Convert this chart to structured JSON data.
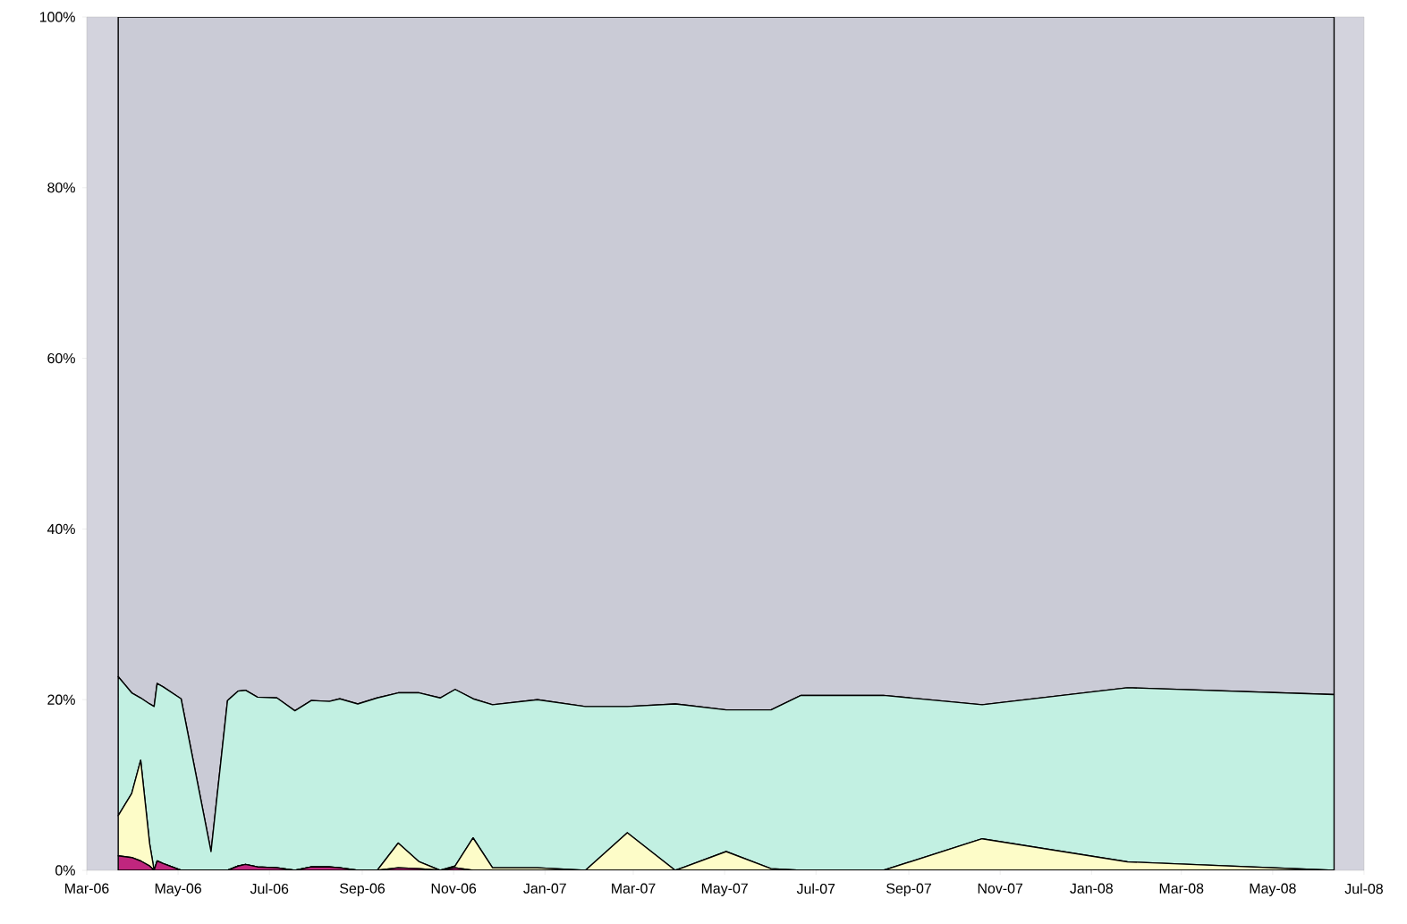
{
  "chart_data": {
    "type": "area",
    "stacked": true,
    "x": [
      "2006-03-22",
      "2006-03-31",
      "2006-04-06",
      "2006-04-12",
      "2006-04-15",
      "2006-04-17",
      "2006-04-21",
      "2006-05-03",
      "2006-05-23",
      "2006-06-03",
      "2006-06-10",
      "2006-06-15",
      "2006-06-23",
      "2006-07-06",
      "2006-07-18",
      "2006-07-29",
      "2006-08-10",
      "2006-08-17",
      "2006-08-29",
      "2006-09-11",
      "2006-09-25",
      "2006-10-09",
      "2006-10-23",
      "2006-11-02",
      "2006-11-14",
      "2006-11-27",
      "2006-12-27",
      "2007-01-28",
      "2007-02-25",
      "2007-03-29",
      "2007-05-02",
      "2007-06-01",
      "2007-06-21",
      "2007-08-15",
      "2007-10-20",
      "2008-01-25",
      "2008-06-11"
    ],
    "series": [
      {
        "color": "#c0267e",
        "values": [
          1.7,
          1.5,
          1.1,
          0.5,
          0,
          1.1,
          0.8,
          0,
          0,
          0,
          0.5,
          0.7,
          0.4,
          0.3,
          0,
          0.4,
          0.4,
          0.3,
          0,
          0,
          0.3,
          0.2,
          0,
          0.3,
          0,
          0,
          0,
          0,
          0,
          0,
          0,
          0,
          0,
          0,
          0,
          0,
          0
        ]
      },
      {
        "color": "#fdfcc8",
        "values": [
          4.7,
          7.5,
          11.8,
          2.6,
          0,
          0,
          0,
          0,
          0,
          0,
          0,
          0,
          0,
          0,
          0,
          0,
          0,
          0,
          0,
          0,
          2.9,
          0.8,
          0,
          0.2,
          3.8,
          0.3,
          0.3,
          0,
          4.4,
          0,
          2.2,
          0.2,
          0,
          0,
          3.7,
          1.0,
          0
        ]
      },
      {
        "color": "#c2f0e2",
        "values": [
          16.3,
          11.8,
          7.3,
          16.4,
          19.2,
          20.8,
          20.7,
          20.1,
          2.2,
          19.9,
          20.5,
          20.4,
          19.9,
          19.9,
          18.7,
          19.5,
          19.4,
          19.8,
          19.5,
          20.2,
          17.6,
          19.8,
          20.2,
          20.7,
          16.3,
          19.1,
          19.7,
          19.2,
          14.8,
          19.5,
          16.6,
          18.6,
          20.5,
          20.5,
          15.7,
          20.4,
          20.6
        ]
      },
      {
        "color": "#cacbd6",
        "values": [
          77.3,
          79.2,
          79.8,
          80.5,
          80.8,
          78.1,
          78.5,
          79.9,
          97.8,
          80.1,
          79.0,
          78.9,
          79.7,
          79.8,
          81.3,
          80.1,
          80.2,
          79.9,
          80.5,
          79.8,
          79.2,
          79.2,
          79.8,
          78.8,
          79.9,
          80.6,
          80.0,
          80.8,
          80.8,
          80.5,
          81.2,
          81.2,
          79.5,
          79.5,
          80.6,
          78.6,
          79.4
        ]
      }
    ],
    "xlim": [
      "2006-03-01",
      "2008-07-01"
    ],
    "xticks": [
      {
        "value": "2006-03-01",
        "label": "Mar-06"
      },
      {
        "value": "2006-05-01",
        "label": "May-06"
      },
      {
        "value": "2006-07-01",
        "label": "Jul-06"
      },
      {
        "value": "2006-09-01",
        "label": "Sep-06"
      },
      {
        "value": "2006-11-01",
        "label": "Nov-06"
      },
      {
        "value": "2007-01-01",
        "label": "Jan-07"
      },
      {
        "value": "2007-03-01",
        "label": "Mar-07"
      },
      {
        "value": "2007-05-01",
        "label": "May-07"
      },
      {
        "value": "2007-07-01",
        "label": "Jul-07"
      },
      {
        "value": "2007-09-01",
        "label": "Sep-07"
      },
      {
        "value": "2007-11-01",
        "label": "Nov-07"
      },
      {
        "value": "2008-01-01",
        "label": "Jan-08"
      },
      {
        "value": "2008-03-01",
        "label": "Mar-08"
      },
      {
        "value": "2008-05-01",
        "label": "May-08"
      },
      {
        "value": "2008-07-01",
        "label": "Jul-08"
      }
    ],
    "ylim": [
      0,
      100
    ],
    "yticks": [
      {
        "value": 0,
        "label": "0%"
      },
      {
        "value": 20,
        "label": "20%"
      },
      {
        "value": 40,
        "label": "40%"
      },
      {
        "value": 60,
        "label": "60%"
      },
      {
        "value": 80,
        "label": "80%"
      },
      {
        "value": 100,
        "label": "100%"
      }
    ]
  }
}
